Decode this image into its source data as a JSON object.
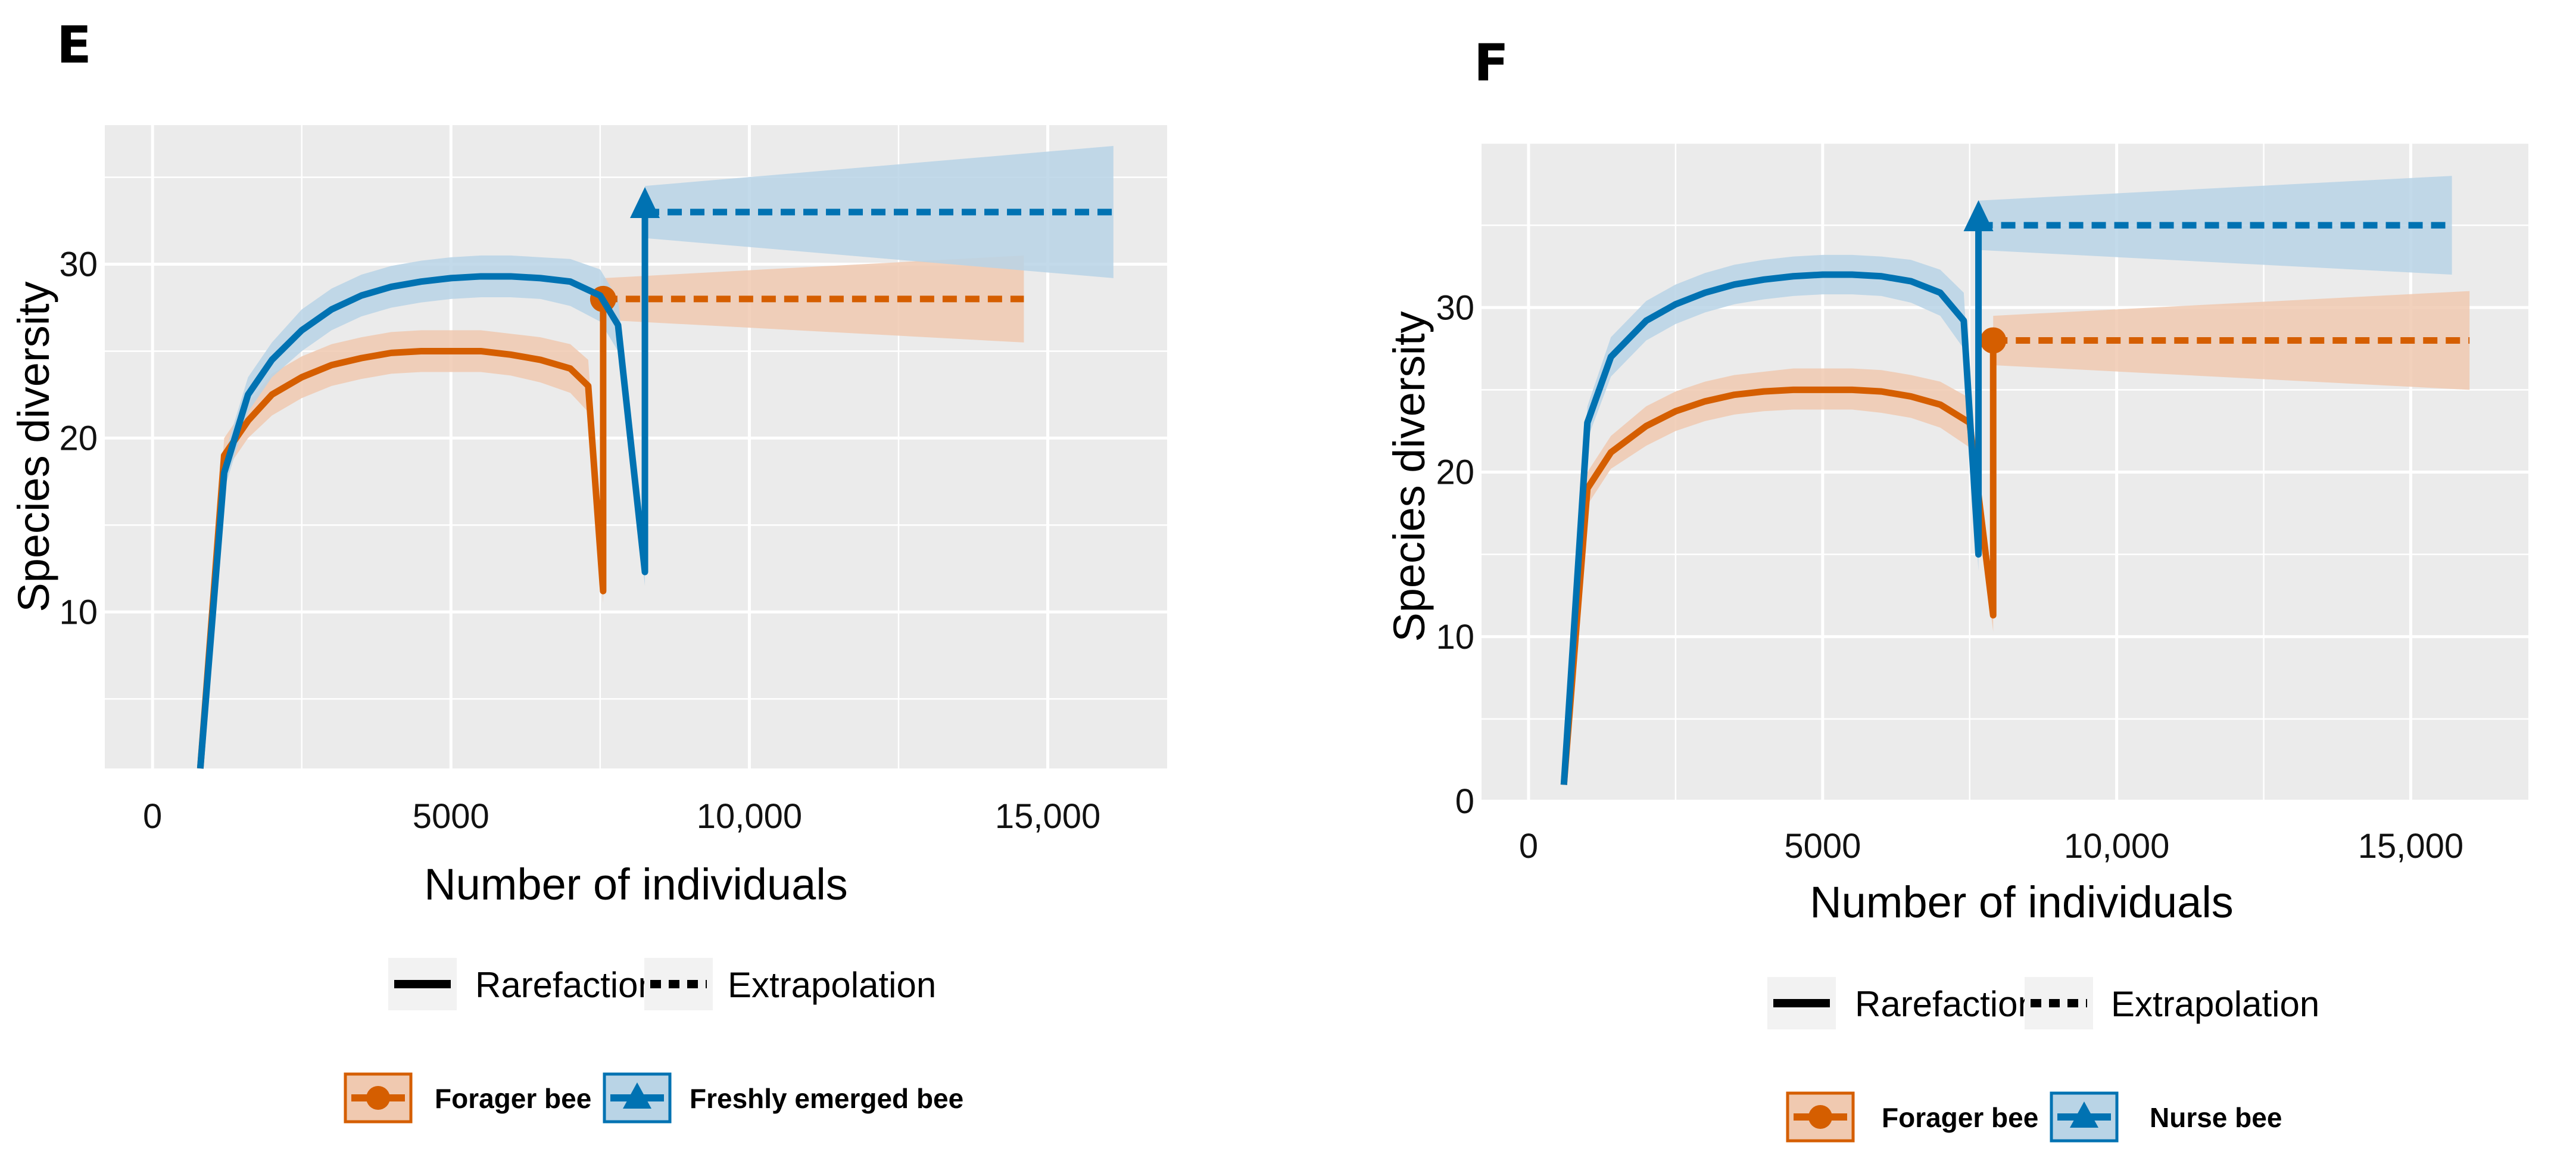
{
  "colors": {
    "forager": "#D55E00",
    "forager_fill": "#F0C9B0",
    "second": "#0072B2",
    "second_fill": "#B9D4E6",
    "panel_bg": "#EBEBEB"
  },
  "chart_data": [
    {
      "type": "line",
      "panel": "E",
      "xlabel": "Number of individuals",
      "ylabel": "Species diversity",
      "xlim": [
        -800,
        17000
      ],
      "ylim": [
        1,
        38
      ],
      "xticks": [
        0,
        5000,
        10000,
        15000
      ],
      "xtick_labels": [
        "0",
        "5000",
        "10,000",
        "15,000"
      ],
      "yticks": [
        10,
        20,
        30
      ],
      "ytick_labels": [
        "10",
        "20",
        "30"
      ],
      "line_type_legend": {
        "solid": "Rarefaction",
        "dashed": "Extrapolation"
      },
      "series": [
        {
          "name": "Forager bee",
          "color_key": "forager",
          "marker": "circle",
          "rarefaction": {
            "x": [
              800,
              1200,
              1600,
              2000,
              2500,
              3000,
              3500,
              4000,
              4500,
              5000,
              5500,
              6000,
              6500,
              7000,
              7300,
              7550,
              7550
            ],
            "y": [
              1,
              19,
              21,
              22.5,
              23.5,
              24.2,
              24.6,
              24.9,
              25,
              25,
              25,
              24.8,
              24.5,
              24,
              23,
              11.2,
              28
            ],
            "lower": [
              1,
              18,
              20,
              21.3,
              22.3,
              23,
              23.4,
              23.7,
              23.8,
              23.8,
              23.8,
              23.6,
              23.2,
              22.6,
              21.5,
              10.5,
              26.8
            ],
            "upper": [
              1,
              20,
              22,
              23.7,
              24.7,
              25.4,
              25.8,
              26.1,
              26.2,
              26.2,
              26.2,
              26,
              25.8,
              25.4,
              24.5,
              12,
              29.2
            ]
          },
          "observed": {
            "x": 7550,
            "y": 28
          },
          "extrapolation": {
            "x": [
              7550,
              14600
            ],
            "y": [
              28,
              28
            ],
            "lower": [
              26.8,
              25.5
            ],
            "upper": [
              29.2,
              30.5
            ]
          }
        },
        {
          "name": "Freshly emerged bee",
          "color_key": "second",
          "marker": "triangle",
          "rarefaction": {
            "x": [
              800,
              1200,
              1600,
              2000,
              2500,
              3000,
              3500,
              4000,
              4500,
              5000,
              5500,
              6000,
              6500,
              7000,
              7500,
              7800,
              8250,
              8250
            ],
            "y": [
              1,
              18,
              22.5,
              24.5,
              26.2,
              27.4,
              28.2,
              28.7,
              29,
              29.2,
              29.3,
              29.3,
              29.2,
              29,
              28.2,
              26.5,
              12.3,
              33
            ],
            "lower": [
              1,
              17,
              21.5,
              23.5,
              25,
              26.2,
              27,
              27.5,
              27.8,
              28,
              28.1,
              28.1,
              28,
              27.6,
              26.7,
              25,
              11.5,
              31.5
            ],
            "upper": [
              1,
              19,
              23.5,
              25.5,
              27.4,
              28.6,
              29.4,
              29.9,
              30.2,
              30.4,
              30.5,
              30.5,
              30.4,
              30.3,
              29.7,
              28,
              13,
              34.5
            ]
          },
          "observed": {
            "x": 8250,
            "y": 33
          },
          "extrapolation": {
            "x": [
              8250,
              16100
            ],
            "y": [
              33,
              33
            ],
            "lower": [
              31.5,
              29.2
            ],
            "upper": [
              34.5,
              36.8
            ]
          }
        }
      ]
    },
    {
      "type": "line",
      "panel": "F",
      "xlabel": "Number of individuals",
      "ylabel": "Species diversity",
      "xlim": [
        -800,
        17000
      ],
      "ylim": [
        0,
        40
      ],
      "xticks": [
        0,
        5000,
        10000,
        15000
      ],
      "xtick_labels": [
        "0",
        "5000",
        "10,000",
        "15,000"
      ],
      "yticks": [
        0,
        10,
        20,
        30
      ],
      "ytick_labels": [
        "0",
        "10",
        "20",
        "30"
      ],
      "line_type_legend": {
        "solid": "Rarefaction",
        "dashed": "Extrapolation"
      },
      "series": [
        {
          "name": "Forager bee",
          "color_key": "forager",
          "marker": "circle",
          "rarefaction": {
            "x": [
              600,
              1000,
              1400,
              2000,
              2500,
              3000,
              3500,
              4000,
              4500,
              5000,
              5500,
              6000,
              6500,
              7000,
              7500,
              7900,
              7900
            ],
            "y": [
              1,
              19,
              21.2,
              22.8,
              23.7,
              24.3,
              24.7,
              24.9,
              25,
              25,
              25,
              24.9,
              24.6,
              24.1,
              23,
              11.3,
              28
            ],
            "lower": [
              1,
              18,
              20.2,
              21.6,
              22.5,
              23.1,
              23.5,
              23.7,
              23.8,
              23.8,
              23.8,
              23.6,
              23.3,
              22.7,
              21.5,
              10.3,
              26.5
            ],
            "upper": [
              1,
              20,
              22.2,
              24,
              24.9,
              25.5,
              25.9,
              26.1,
              26.3,
              26.3,
              26.3,
              26.2,
              25.9,
              25.5,
              24.5,
              12.3,
              29.5
            ]
          },
          "observed": {
            "x": 7900,
            "y": 28
          },
          "extrapolation": {
            "x": [
              7900,
              16000
            ],
            "y": [
              28,
              28
            ],
            "lower": [
              26.5,
              25
            ],
            "upper": [
              29.5,
              31
            ]
          }
        },
        {
          "name": "Nurse bee",
          "color_key": "second",
          "marker": "triangle",
          "rarefaction": {
            "x": [
              600,
              1000,
              1400,
              2000,
              2500,
              3000,
              3500,
              4000,
              4500,
              5000,
              5500,
              6000,
              6500,
              7000,
              7400,
              7650,
              7650
            ],
            "y": [
              1,
              23,
              27,
              29.2,
              30.2,
              30.9,
              31.4,
              31.7,
              31.9,
              32,
              32,
              31.9,
              31.6,
              30.9,
              29.2,
              15,
              35
            ],
            "lower": [
              1,
              22,
              25.8,
              28,
              29,
              29.7,
              30.2,
              30.5,
              30.7,
              30.8,
              30.8,
              30.7,
              30.3,
              29.5,
              27.5,
              14,
              33.5
            ],
            "upper": [
              1,
              24,
              28.2,
              30.4,
              31.4,
              32.1,
              32.6,
              32.9,
              33.1,
              33.2,
              33.2,
              33.1,
              32.9,
              32.3,
              30.9,
              16,
              36.5
            ]
          },
          "observed": {
            "x": 7650,
            "y": 35
          },
          "extrapolation": {
            "x": [
              7650,
              15700
            ],
            "y": [
              35,
              35
            ],
            "lower": [
              33.5,
              32
            ],
            "upper": [
              36.5,
              38
            ]
          }
        }
      ]
    }
  ]
}
